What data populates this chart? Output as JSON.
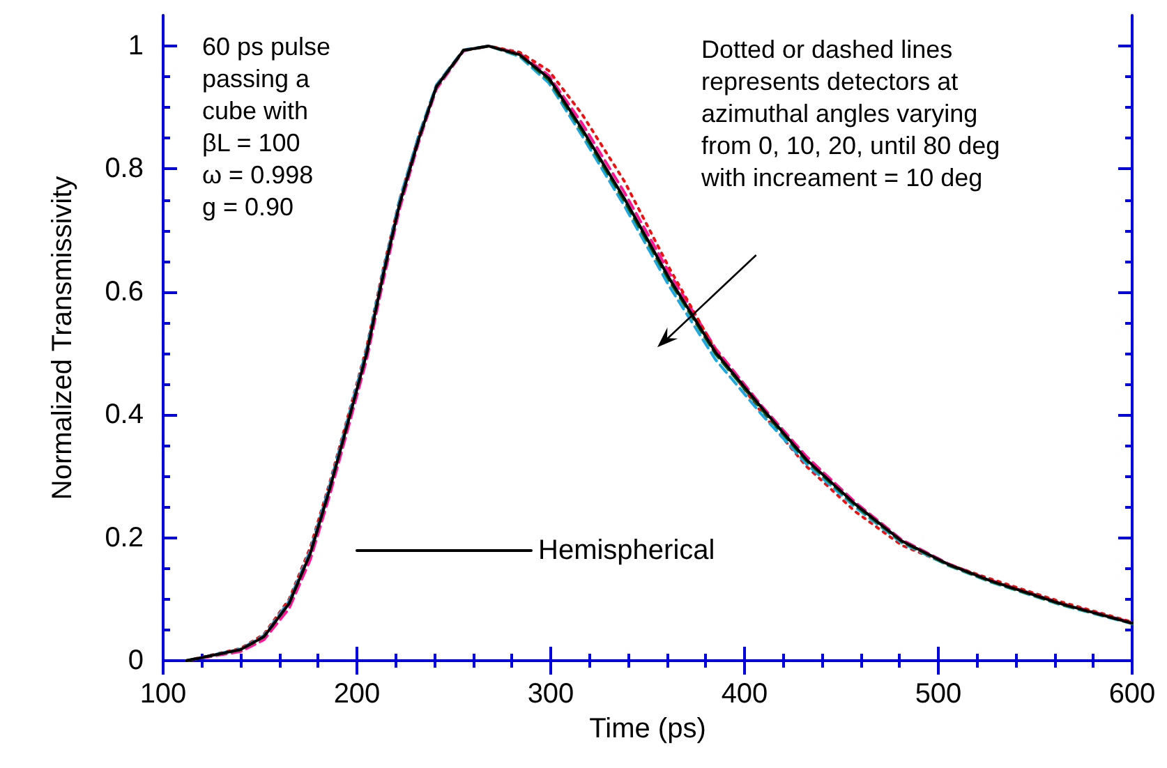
{
  "chart_data": {
    "type": "line",
    "xlabel": "Time (ps)",
    "ylabel": "Normalized Transmissivity",
    "x": [
      112,
      140,
      152,
      165,
      176,
      186,
      196,
      205,
      213,
      222,
      232,
      241,
      255,
      268,
      284,
      299,
      316,
      338,
      361,
      385,
      409,
      432,
      457,
      481,
      505,
      527,
      563,
      600
    ],
    "series": [
      {
        "color": "#ff1493",
        "line_style": "dashed",
        "values": [
          0,
          0.015,
          0.034,
          0.085,
          0.165,
          0.27,
          0.385,
          0.49,
          0.61,
          0.735,
          0.845,
          0.93,
          0.992,
          1.0,
          0.988,
          0.952,
          0.875,
          0.762,
          0.632,
          0.508,
          0.414,
          0.332,
          0.258,
          0.197,
          0.158,
          0.131,
          0.094,
          0.062
        ]
      },
      {
        "color": "#ee1111",
        "line_style": "dotted",
        "values": [
          0,
          0.02,
          0.043,
          0.1,
          0.185,
          0.29,
          0.405,
          0.51,
          0.63,
          0.75,
          0.855,
          0.935,
          0.993,
          1.0,
          0.99,
          0.96,
          0.89,
          0.78,
          0.64,
          0.505,
          0.403,
          0.316,
          0.243,
          0.188,
          0.157,
          0.133,
          0.096,
          0.063
        ]
      },
      {
        "color": "#1ea7e1",
        "line_style": "dashed",
        "values": [
          0,
          0.019,
          0.041,
          0.097,
          0.18,
          0.286,
          0.402,
          0.507,
          0.627,
          0.75,
          0.856,
          0.937,
          0.994,
          1.0,
          0.983,
          0.94,
          0.855,
          0.74,
          0.61,
          0.49,
          0.4,
          0.32,
          0.25,
          0.192,
          0.155,
          0.128,
          0.091,
          0.06
        ]
      },
      {
        "color": "#116611",
        "line_style": "dashed",
        "values": [
          0,
          0.018,
          0.039,
          0.093,
          0.175,
          0.28,
          0.395,
          0.5,
          0.62,
          0.743,
          0.85,
          0.934,
          0.993,
          1.0,
          0.985,
          0.945,
          0.862,
          0.748,
          0.619,
          0.499,
          0.408,
          0.325,
          0.253,
          0.194,
          0.156,
          0.129,
          0.092,
          0.061
        ]
      },
      {
        "name": "Hemispherical",
        "color": "#000000",
        "line_style": "solid",
        "values": [
          0,
          0.018,
          0.039,
          0.093,
          0.175,
          0.28,
          0.395,
          0.5,
          0.62,
          0.743,
          0.85,
          0.934,
          0.993,
          1.0,
          0.986,
          0.948,
          0.866,
          0.752,
          0.623,
          0.502,
          0.411,
          0.327,
          0.255,
          0.195,
          0.157,
          0.13,
          0.093,
          0.061
        ]
      }
    ],
    "xlim": [
      100,
      600
    ],
    "xticks": [
      100,
      200,
      300,
      400,
      500,
      600
    ],
    "ylim": [
      0,
      1.05
    ],
    "yticks": [
      0,
      0.2,
      0.4,
      0.6,
      0.8,
      1
    ],
    "grid": false,
    "legend": "bottom",
    "marker": "none",
    "annotations": [
      "60 ps pulse\npassing a\ncube with\nβL = 100\nω = 0.998\ng = 0.90",
      "Dotted or dashed lines\nrepresents detectors at\nazimuthal angles varying\nfrom 0, 10, 20, until 80 deg\nwith increament = 10 deg"
    ]
  }
}
